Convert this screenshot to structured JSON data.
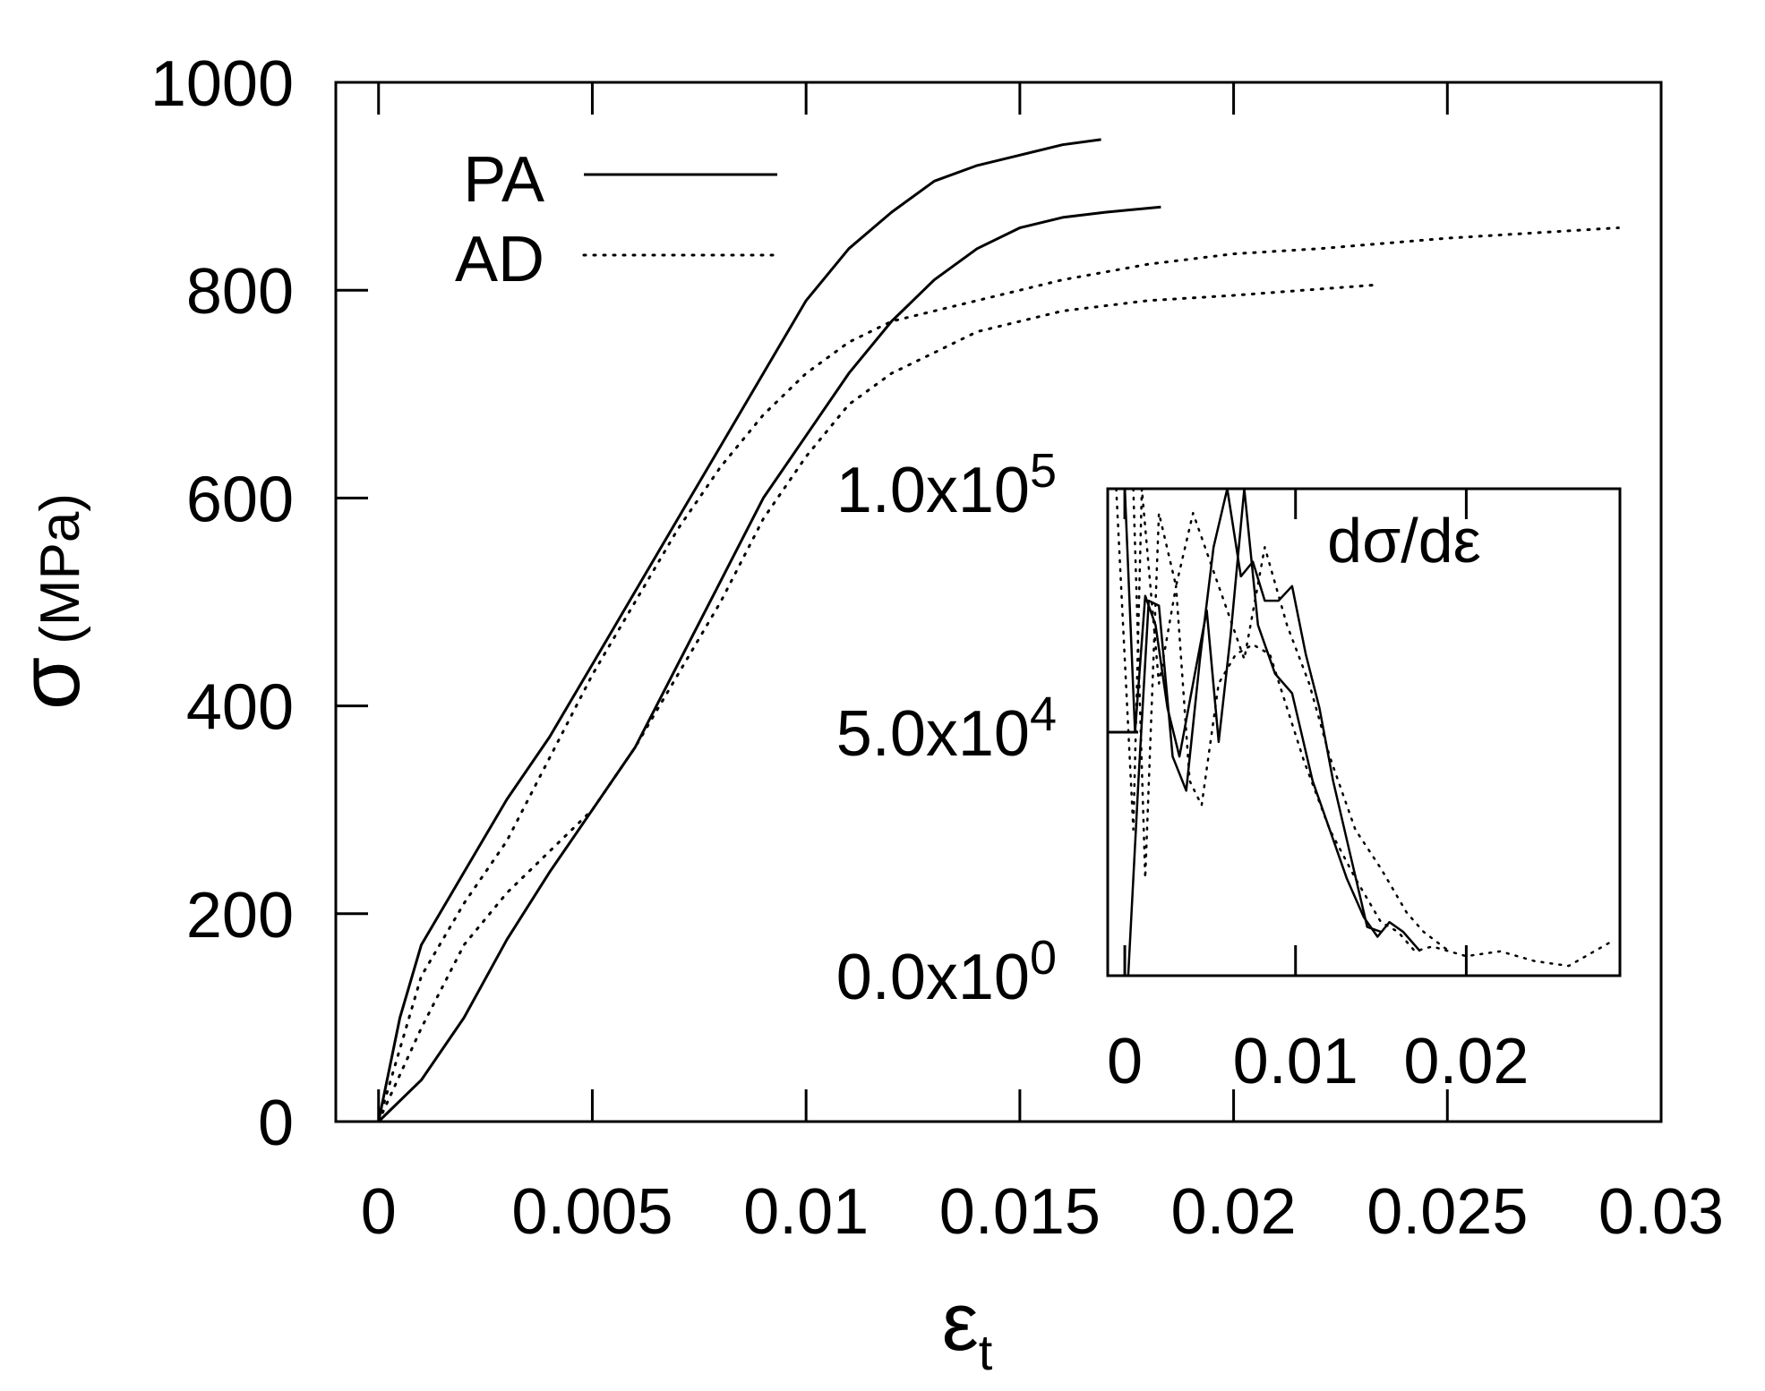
{
  "chart_data": [
    {
      "type": "line",
      "xlabel_main": "ε",
      "xlabel_sub": "t",
      "ylabel_main": "σ",
      "ylabel_unit": "(MPa)",
      "xlim": [
        -0.001,
        0.03
      ],
      "ylim": [
        0,
        1000
      ],
      "xticks": [
        0,
        0.005,
        0.01,
        0.015,
        0.02,
        0.025,
        0.03
      ],
      "xtick_labels": [
        "0",
        "0.005",
        "0.01",
        "0.015",
        "0.02",
        "0.025",
        "0.03"
      ],
      "yticks": [
        0,
        200,
        400,
        600,
        800,
        1000
      ],
      "ytick_labels": [
        "0",
        "200",
        "400",
        "600",
        "800",
        "1000"
      ],
      "legend": {
        "placement": "top-left",
        "entries": [
          {
            "label": "PA",
            "style": "solid"
          },
          {
            "label": "AD",
            "style": "dotted"
          }
        ]
      },
      "grid": false,
      "series": [
        {
          "name": "PA",
          "style": "solid",
          "x": [
            0,
            0.0005,
            0.001,
            0.002,
            0.003,
            0.004,
            0.005,
            0.006,
            0.007,
            0.008,
            0.009,
            0.01,
            0.011,
            0.012,
            0.013,
            0.014,
            0.015,
            0.016,
            0.0169
          ],
          "y": [
            0,
            100,
            170,
            240,
            310,
            370,
            440,
            510,
            580,
            650,
            720,
            790,
            840,
            875,
            905,
            920,
            930,
            940,
            945
          ]
        },
        {
          "name": "PA",
          "style": "solid",
          "x": [
            0,
            0.001,
            0.002,
            0.003,
            0.004,
            0.005,
            0.006,
            0.007,
            0.008,
            0.009,
            0.01,
            0.011,
            0.012,
            0.013,
            0.014,
            0.015,
            0.016,
            0.017,
            0.0183
          ],
          "y": [
            0,
            40,
            100,
            175,
            240,
            300,
            360,
            440,
            520,
            600,
            660,
            720,
            770,
            810,
            840,
            860,
            870,
            875,
            880
          ]
        },
        {
          "name": "AD",
          "style": "dotted",
          "x": [
            0,
            0.001,
            0.002,
            0.003,
            0.004,
            0.005,
            0.006,
            0.007,
            0.008,
            0.009,
            0.01,
            0.011,
            0.012,
            0.014,
            0.016,
            0.018,
            0.02,
            0.022,
            0.025,
            0.029
          ],
          "y": [
            0,
            140,
            210,
            270,
            350,
            430,
            500,
            570,
            630,
            680,
            720,
            750,
            770,
            790,
            810,
            825,
            835,
            840,
            850,
            860
          ]
        },
        {
          "name": "AD",
          "style": "dotted",
          "x": [
            0,
            0.001,
            0.002,
            0.003,
            0.004,
            0.005,
            0.006,
            0.007,
            0.008,
            0.009,
            0.01,
            0.011,
            0.012,
            0.013,
            0.014,
            0.016,
            0.018,
            0.02,
            0.0233
          ],
          "y": [
            0,
            90,
            170,
            220,
            260,
            300,
            360,
            430,
            500,
            580,
            640,
            690,
            720,
            740,
            760,
            780,
            790,
            795,
            805
          ]
        }
      ]
    },
    {
      "type": "line",
      "title": "dσ/dε",
      "xlim": [
        -0.001,
        0.029
      ],
      "ylim": [
        0,
        100000
      ],
      "xticks": [
        0,
        0.01,
        0.02
      ],
      "xtick_labels": [
        "0",
        "0.01",
        "0.02"
      ],
      "yticks": [
        0,
        50000,
        100000
      ],
      "ytick_base": [
        "0.0x10",
        "5.0x10",
        "1.0x10"
      ],
      "ytick_exp": [
        "0",
        "4",
        "5"
      ],
      "grid": false,
      "series": [
        {
          "name": "PA",
          "style": "solid",
          "x": [
            0,
            0.0006,
            0.0012,
            0.0018,
            0.0025,
            0.0032,
            0.004,
            0.0048,
            0.0055,
            0.0062,
            0.007,
            0.0078,
            0.0088,
            0.0098,
            0.011,
            0.012,
            0.013,
            0.014,
            0.0148,
            0.0155,
            0.0163,
            0.0173
          ],
          "y": [
            100000,
            50000,
            78000,
            72000,
            55000,
            45000,
            60000,
            75000,
            48000,
            70000,
            100000,
            72000,
            62000,
            58000,
            40000,
            30000,
            20000,
            12000,
            8000,
            11000,
            9000,
            5000
          ]
        },
        {
          "name": "PA",
          "style": "solid",
          "x": [
            0.0002,
            0.0008,
            0.0014,
            0.002,
            0.0028,
            0.0036,
            0.0044,
            0.0052,
            0.006,
            0.0068,
            0.0075,
            0.0082,
            0.009,
            0.0098,
            0.0106,
            0.0114,
            0.0122,
            0.0132,
            0.0142,
            0.015
          ],
          "y": [
            0,
            40000,
            77000,
            76000,
            45000,
            38000,
            65000,
            88000,
            100000,
            82000,
            85000,
            77000,
            77000,
            80000,
            66000,
            55000,
            40000,
            25000,
            10000,
            9000
          ]
        },
        {
          "name": "AD",
          "style": "dotted",
          "x": [
            -0.0005,
            0.0005,
            0.001,
            0.002,
            0.003,
            0.0038,
            0.0045,
            0.0055,
            0.0065,
            0.0075,
            0.0085,
            0.0095,
            0.0105,
            0.012,
            0.0135,
            0.015,
            0.016,
            0.017,
            0.018,
            0.019,
            0.02,
            0.022,
            0.024,
            0.026,
            0.0285
          ],
          "y": [
            100000,
            30000,
            100000,
            60000,
            80000,
            40000,
            35000,
            60000,
            66000,
            68000,
            66000,
            55000,
            44000,
            30000,
            20000,
            11000,
            9000,
            5000,
            6000,
            5000,
            4000,
            5000,
            3000,
            2000,
            7000
          ]
        },
        {
          "name": "AD",
          "style": "dotted",
          "x": [
            0.0005,
            0.0012,
            0.002,
            0.003,
            0.004,
            0.005,
            0.006,
            0.007,
            0.0082,
            0.0095,
            0.0108,
            0.012,
            0.0135,
            0.015,
            0.0165,
            0.0175,
            0.019
          ],
          "y": [
            100000,
            20000,
            95000,
            80000,
            95000,
            85000,
            75000,
            65000,
            88000,
            72000,
            60000,
            45000,
            30000,
            22000,
            13000,
            9000,
            5000
          ]
        }
      ]
    }
  ]
}
